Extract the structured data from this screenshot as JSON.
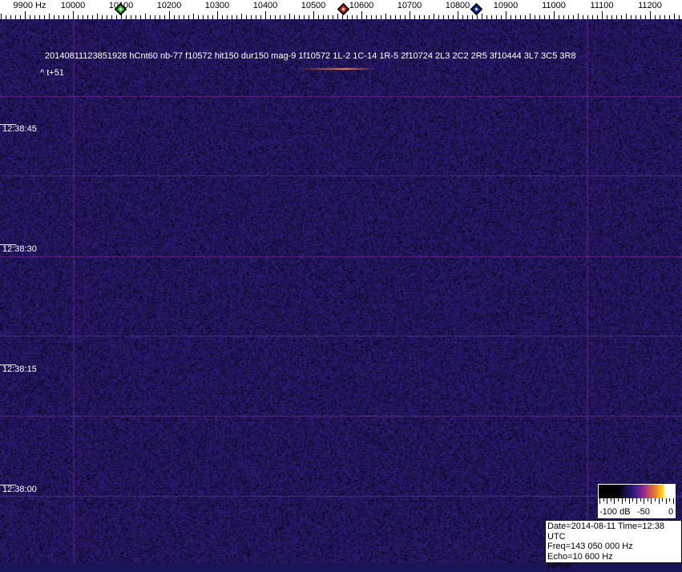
{
  "freq_axis": {
    "labels": [
      "9900 Hz",
      "10000",
      "10100",
      "10200",
      "10300",
      "10400",
      "10500",
      "10600",
      "10700",
      "10800",
      "10900",
      "11000",
      "11100",
      "11200"
    ],
    "values": [
      9900,
      10000,
      10100,
      10200,
      10300,
      10400,
      10500,
      10600,
      10700,
      10800,
      10900,
      11000,
      11100,
      11200
    ]
  },
  "markers": [
    {
      "name": "green-marker",
      "color": "#22cc22",
      "freq": 10100
    },
    {
      "name": "red-marker",
      "color": "#dd2222",
      "freq": 10563
    },
    {
      "name": "blue-marker",
      "color": "#1133cc",
      "freq": 10840
    }
  ],
  "detection_text": "20140811123851928 hCnt60 nb-77 f10572 hit150 dur150 mag-9 1f10572 1L-2 1C-14 1R-5 2f10724 2L3 2C2 2R5 3f10444 3L7 3C5 3R8",
  "offset_text": "^ t+51",
  "time_labels": [
    "12:38:45",
    "12:38:30",
    "12:38:15",
    "12:38:00"
  ],
  "colorbar": {
    "labels": [
      "-100 dB",
      "-50",
      "0"
    ]
  },
  "info": {
    "date_time": "Date=2014-08-11 Time=12:38 UTC",
    "freq": "Freq=143 050 000 Hz",
    "echo": "Echo=10 600 Hz",
    "station": "HPHK"
  },
  "colors": {
    "background": "#1a1458",
    "grid_line": "#7a2a9a",
    "echo": "#ff9040"
  }
}
